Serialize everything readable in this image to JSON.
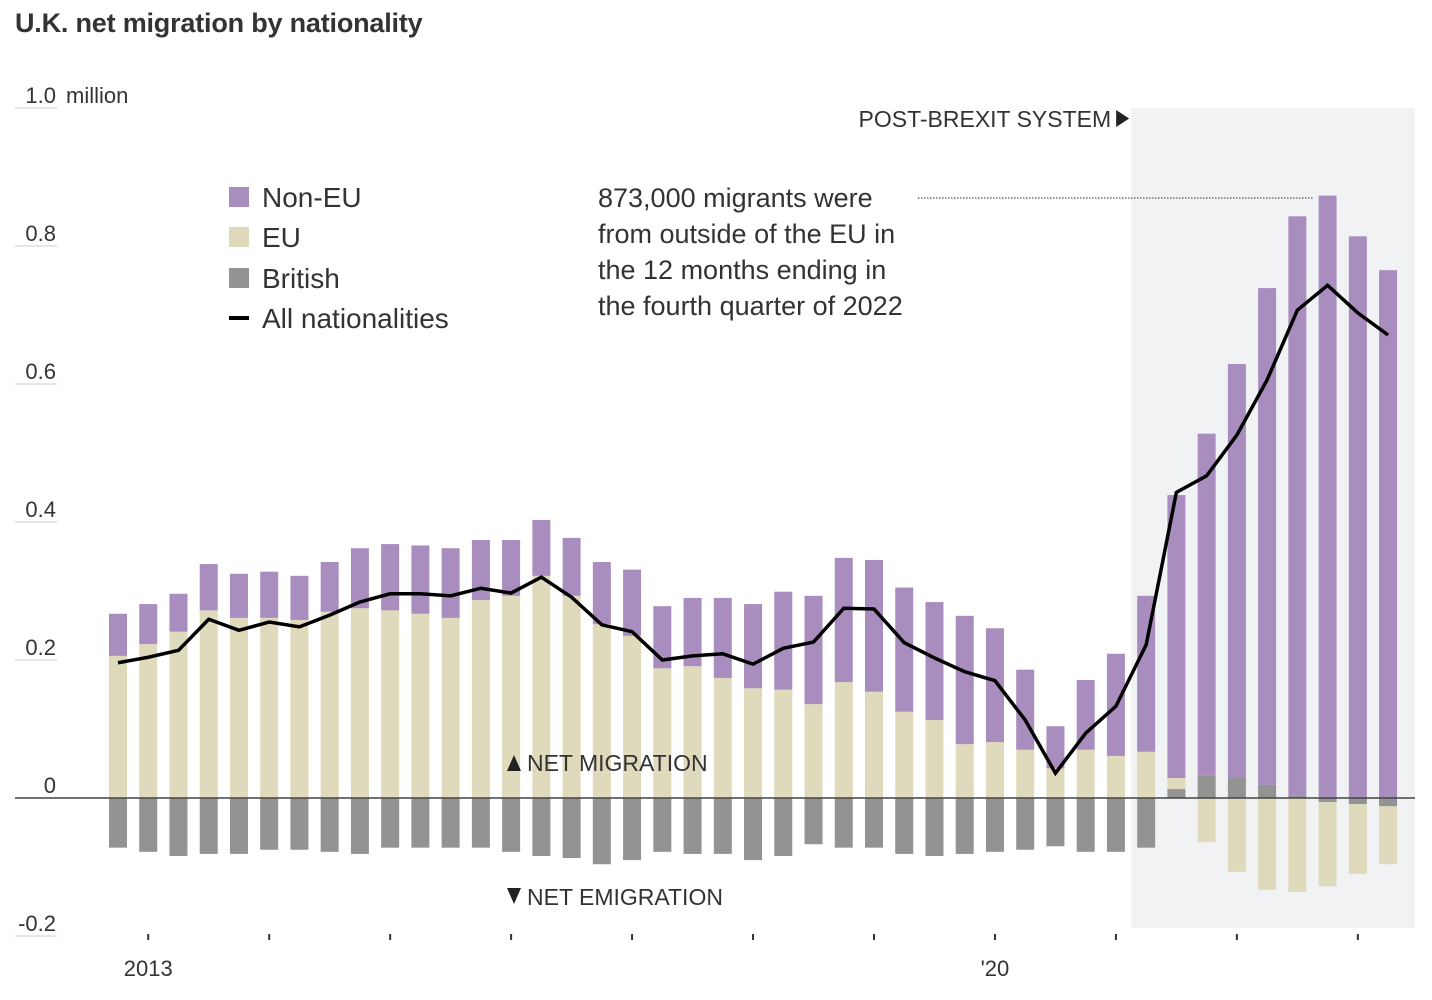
{
  "chart_data": {
    "type": "bar",
    "stacked": true,
    "title": "U.K. net migration by nationality",
    "ylabel_unit": "million",
    "ylim": [
      -0.2,
      1.0
    ],
    "yticks": [
      {
        "value": 1.0,
        "label": "1.0"
      },
      {
        "value": 0.8,
        "label": "0.8"
      },
      {
        "value": 0.6,
        "label": "0.6"
      },
      {
        "value": 0.4,
        "label": "0.4"
      },
      {
        "value": 0.2,
        "label": "0.2"
      },
      {
        "value": 0,
        "label": "0"
      },
      {
        "value": -0.2,
        "label": "-0.2"
      }
    ],
    "xtick_labels": [
      {
        "category": "2013 Q1",
        "label": "2013"
      },
      {
        "category": "2020 Q1",
        "label": "'20"
      }
    ],
    "year_ticks": [
      "2013 Q1",
      "2014 Q1",
      "2015 Q1",
      "2016 Q1",
      "2017 Q1",
      "2018 Q1",
      "2019 Q1",
      "2020 Q1",
      "2021 Q1",
      "2022 Q1",
      "2023 Q1"
    ],
    "categories": [
      "2012 Q4",
      "2013 Q1",
      "2013 Q2",
      "2013 Q3",
      "2013 Q4",
      "2014 Q1",
      "2014 Q2",
      "2014 Q3",
      "2014 Q4",
      "2015 Q1",
      "2015 Q2",
      "2015 Q3",
      "2015 Q4",
      "2016 Q1",
      "2016 Q2",
      "2016 Q3",
      "2016 Q4",
      "2017 Q1",
      "2017 Q2",
      "2017 Q3",
      "2017 Q4",
      "2018 Q1",
      "2018 Q2",
      "2018 Q3",
      "2018 Q4",
      "2019 Q1",
      "2019 Q2",
      "2019 Q3",
      "2019 Q4",
      "2020 Q1",
      "2020 Q2",
      "2020 Q3",
      "2020 Q4",
      "2021 Q1",
      "2021 Q2",
      "2021 Q3",
      "2021 Q4",
      "2022 Q1",
      "2022 Q2",
      "2022 Q3",
      "2022 Q4",
      "2023 Q1",
      "2023 Q2"
    ],
    "series": [
      {
        "name": "British",
        "kind": "bar",
        "color": "#939393",
        "values": [
          -0.072,
          -0.078,
          -0.084,
          -0.081,
          -0.081,
          -0.075,
          -0.075,
          -0.078,
          -0.081,
          -0.072,
          -0.072,
          -0.072,
          -0.072,
          -0.078,
          -0.084,
          -0.087,
          -0.096,
          -0.09,
          -0.078,
          -0.081,
          -0.081,
          -0.09,
          -0.084,
          -0.067,
          -0.072,
          -0.072,
          -0.081,
          -0.084,
          -0.081,
          -0.078,
          -0.075,
          -0.07,
          -0.078,
          -0.078,
          -0.072,
          0.013,
          0.032,
          0.029,
          0.019,
          0.004,
          -0.006,
          -0.009,
          -0.012
        ]
      },
      {
        "name": "EU",
        "kind": "bar",
        "color": "#dedabb",
        "values": [
          0.206,
          0.223,
          0.241,
          0.272,
          0.261,
          0.261,
          0.258,
          0.27,
          0.275,
          0.272,
          0.267,
          0.261,
          0.287,
          0.293,
          0.322,
          0.293,
          0.252,
          0.235,
          0.188,
          0.191,
          0.174,
          0.159,
          0.157,
          0.136,
          0.168,
          0.154,
          0.125,
          0.113,
          0.078,
          0.081,
          0.07,
          0.043,
          0.07,
          0.061,
          0.067,
          0.016,
          -0.064,
          -0.107,
          -0.133,
          -0.136,
          -0.122,
          -0.101,
          -0.084
        ]
      },
      {
        "name": "Non-EU",
        "kind": "bar",
        "color": "#a98dbf",
        "values": [
          0.061,
          0.058,
          0.055,
          0.067,
          0.064,
          0.067,
          0.064,
          0.072,
          0.087,
          0.096,
          0.099,
          0.101,
          0.087,
          0.081,
          0.081,
          0.084,
          0.09,
          0.096,
          0.09,
          0.099,
          0.116,
          0.122,
          0.142,
          0.157,
          0.18,
          0.191,
          0.18,
          0.171,
          0.186,
          0.165,
          0.116,
          0.061,
          0.101,
          0.148,
          0.226,
          0.41,
          0.496,
          0.6,
          0.72,
          0.839,
          0.873,
          0.814,
          0.765
        ]
      },
      {
        "name": "All nationalities",
        "kind": "line",
        "color": "#000000",
        "values": [
          0.196,
          0.204,
          0.214,
          0.259,
          0.243,
          0.255,
          0.248,
          0.265,
          0.284,
          0.296,
          0.296,
          0.293,
          0.304,
          0.297,
          0.32,
          0.291,
          0.251,
          0.241,
          0.2,
          0.206,
          0.209,
          0.194,
          0.217,
          0.226,
          0.275,
          0.274,
          0.225,
          0.203,
          0.183,
          0.17,
          0.113,
          0.036,
          0.094,
          0.133,
          0.222,
          0.443,
          0.467,
          0.526,
          0.606,
          0.707,
          0.743,
          0.703,
          0.671
        ]
      }
    ],
    "legend": {
      "placement": "top-left",
      "items": [
        "Non-EU",
        "EU",
        "British",
        "All nationalities"
      ]
    },
    "shaded_region": {
      "from": "2021 Q2",
      "label": "POST-BREXIT SYSTEM",
      "color": "#f1f2f4"
    },
    "annotation": {
      "category": "2022 Q4",
      "lines": [
        "873,000 migrants were",
        "from outside of the EU in",
        "the 12 months ending in",
        "the fourth quarter of 2022"
      ]
    },
    "direction_labels": {
      "up": "NET MIGRATION",
      "down": "NET EMIGRATION"
    },
    "grid": false
  }
}
